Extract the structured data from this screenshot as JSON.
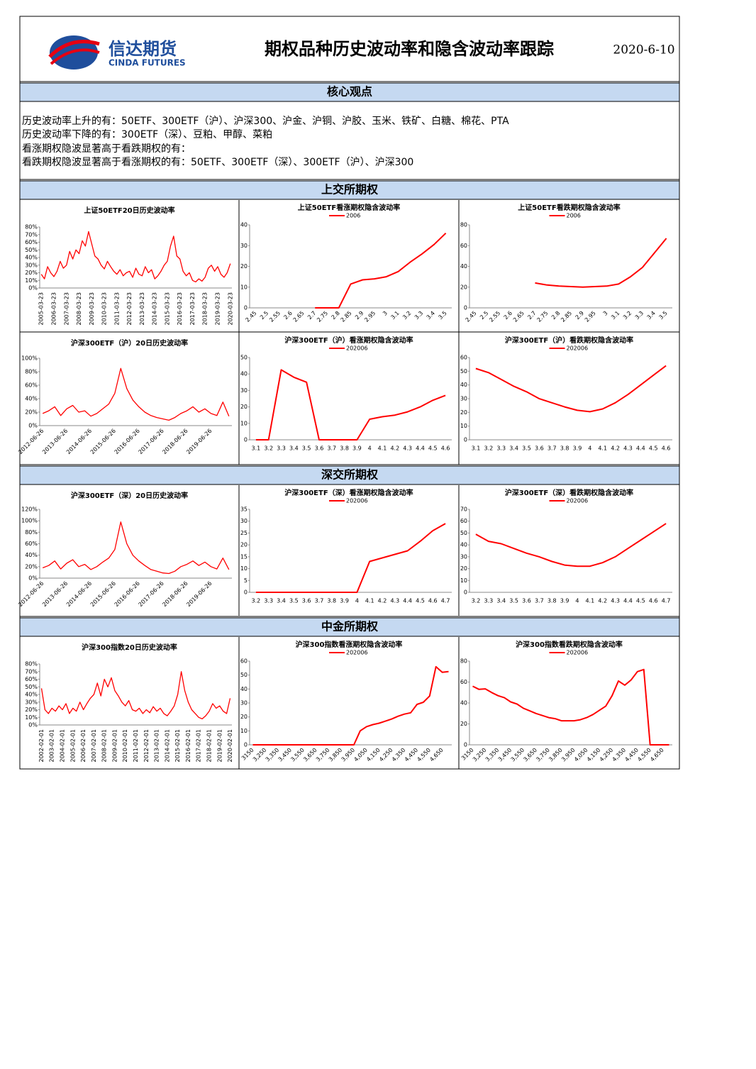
{
  "header": {
    "logo_cn": "信达期货",
    "logo_en": "CINDA FUTURES",
    "title": "期权品种历史波动率和隐含波动率跟踪",
    "date": "2020-6-10"
  },
  "sections": [
    {
      "title": "核心观点",
      "lines": [
        "历史波动率上升的有：50ETF、300ETF（沪）、沪深300、沪金、沪铜、沪胶、玉米、铁矿、白糖、棉花、PTA",
        "历史波动率下降的有：300ETF（深）、豆粕、甲醇、菜粕",
        "看涨期权隐波显著高于看跌期权的有：",
        "看跌期权隐波显著高于看涨期权的有：50ETF、300ETF（深）、300ETF（沪）、沪深300"
      ]
    },
    {
      "title": "上交所期权"
    },
    {
      "title": "深交所期权"
    },
    {
      "title": "中金所期权"
    }
  ],
  "chart_data": [
    {
      "type": "line",
      "title": "上证50ETF20日历史波动率",
      "color": "#ff0000",
      "categories": [
        "2005-03-23",
        null,
        null,
        null,
        "2006-03-23",
        null,
        null,
        null,
        "2007-03-23",
        null,
        null,
        null,
        "2008-03-23",
        null,
        null,
        null,
        "2009-03-23",
        null,
        null,
        null,
        "2010-03-23",
        null,
        null,
        null,
        "2011-03-23",
        null,
        null,
        null,
        "2012-03-23",
        null,
        null,
        null,
        "2013-03-23",
        null,
        null,
        null,
        "2014-03-23",
        null,
        null,
        null,
        "2015-03-23",
        null,
        null,
        null,
        "2016-03-23",
        null,
        null,
        null,
        "2017-03-23",
        null,
        null,
        null,
        "2018-03-23",
        null,
        null,
        null,
        "2019-03-23",
        null,
        null,
        null,
        "2020-03-23"
      ],
      "values": [
        18,
        12,
        28,
        20,
        15,
        22,
        35,
        26,
        30,
        48,
        38,
        50,
        45,
        62,
        55,
        74,
        58,
        42,
        38,
        30,
        25,
        35,
        28,
        22,
        18,
        24,
        16,
        20,
        22,
        14,
        26,
        18,
        16,
        28,
        20,
        24,
        12,
        16,
        22,
        30,
        35,
        55,
        68,
        42,
        38,
        22,
        16,
        20,
        10,
        8,
        12,
        9,
        14,
        26,
        30,
        22,
        28,
        18,
        14,
        20,
        32
      ],
      "ylim": [
        0,
        80
      ],
      "yticks": [
        {
          "value": 0,
          "label": "0%"
        },
        {
          "value": 10,
          "label": "10%"
        },
        {
          "value": 20,
          "label": "20%"
        },
        {
          "value": 30,
          "label": "30%"
        },
        {
          "value": 40,
          "label": "40%"
        },
        {
          "value": 50,
          "label": "50%"
        },
        {
          "value": 60,
          "label": "60%"
        },
        {
          "value": 70,
          "label": "70%"
        },
        {
          "value": 80,
          "label": "80%"
        }
      ]
    },
    {
      "type": "line",
      "title": "上证50ETF看涨期权隐含波动率",
      "categories": [
        "2.45",
        "2.5",
        "2.55",
        "2.6",
        "2.65",
        "2.7",
        "2.75",
        "2.8",
        "2.85",
        "2.9",
        "2.95",
        "3",
        "3.1",
        "3.2",
        "3.3",
        "3.4",
        "3.5"
      ],
      "series": [
        {
          "name": "2006",
          "color": "#ff0000",
          "values": [
            null,
            null,
            null,
            null,
            null,
            0,
            0,
            0,
            11.5,
            13.5,
            14,
            15,
            17.5,
            22,
            26,
            30.5,
            36
          ]
        }
      ],
      "ylim": [
        0,
        40
      ],
      "yticks": [
        0,
        10,
        20,
        30,
        40
      ]
    },
    {
      "type": "line",
      "title": "上证50ETF看跌期权隐含波动率",
      "categories": [
        "2.45",
        "2.5",
        "2.55",
        "2.6",
        "2.65",
        "2.7",
        "2.75",
        "2.8",
        "2.85",
        "2.9",
        "2.95",
        "3",
        "3.1",
        "3.2",
        "3.3",
        "3.4",
        "3.5"
      ],
      "series": [
        {
          "name": "2006",
          "color": "#ff0000",
          "values": [
            null,
            null,
            null,
            null,
            null,
            24,
            22,
            21,
            20.5,
            20,
            20.5,
            21,
            23,
            30,
            39,
            53,
            67
          ]
        }
      ],
      "ylim": [
        0,
        80
      ],
      "yticks": [
        0,
        20,
        40,
        60,
        80
      ]
    },
    {
      "type": "line",
      "title": "沪深300ETF（沪）20日历史波动率",
      "color": "#ff0000",
      "categories": [
        "2012-06-26",
        null,
        null,
        null,
        "2013-06-26",
        null,
        null,
        null,
        "2014-06-26",
        null,
        null,
        null,
        "2015-06-26",
        null,
        null,
        null,
        "2016-06-26",
        null,
        null,
        null,
        "2017-06-26",
        null,
        null,
        null,
        "2018-06-26",
        null,
        null,
        null,
        "2019-06-26",
        null,
        null,
        null
      ],
      "values": [
        18,
        22,
        28,
        15,
        25,
        30,
        20,
        22,
        14,
        18,
        25,
        32,
        48,
        85,
        55,
        38,
        28,
        20,
        15,
        12,
        10,
        8,
        12,
        18,
        22,
        28,
        20,
        25,
        18,
        15,
        35,
        14
      ],
      "ylim": [
        0,
        100
      ],
      "yticks": [
        {
          "value": 0,
          "label": "0%"
        },
        {
          "value": 20,
          "label": "20%"
        },
        {
          "value": 40,
          "label": "40%"
        },
        {
          "value": 60,
          "label": "60%"
        },
        {
          "value": 80,
          "label": "80%"
        },
        {
          "value": 100,
          "label": "100%"
        }
      ]
    },
    {
      "type": "line",
      "title": "沪深300ETF（沪）看涨期权隐含波动率",
      "categories": [
        "3.1",
        "3.2",
        "3.3",
        "3.4",
        "3.5",
        "3.6",
        "3.7",
        "3.8",
        "3.9",
        "4",
        "4.1",
        "4.2",
        "4.3",
        "4.4",
        "4.5",
        "4.6"
      ],
      "series": [
        {
          "name": "202006",
          "color": "#ff0000",
          "values": [
            0,
            0,
            42.5,
            38,
            35,
            0,
            0,
            0,
            0,
            12.5,
            14,
            15,
            17,
            20,
            24,
            27
          ]
        }
      ],
      "ylim": [
        0,
        50
      ],
      "yticks": [
        0,
        10,
        20,
        30,
        40,
        50
      ]
    },
    {
      "type": "line",
      "title": "沪深300ETF（沪）看跌期权隐含波动率",
      "categories": [
        "3.1",
        "3.2",
        "3.3",
        "3.4",
        "3.5",
        "3.6",
        "3.7",
        "3.8",
        "3.9",
        "4",
        "4.1",
        "4.2",
        "4.3",
        "4.4",
        "4.5",
        "4.6"
      ],
      "series": [
        {
          "name": "202006",
          "color": "#ff0000",
          "values": [
            52,
            49,
            44,
            39,
            35,
            30,
            27,
            24,
            21.5,
            20.5,
            22.5,
            27,
            33,
            40,
            47,
            54
          ]
        }
      ],
      "ylim": [
        0,
        60
      ],
      "yticks": [
        0,
        10,
        20,
        30,
        40,
        50,
        60
      ]
    },
    {
      "type": "line",
      "title": "沪深300ETF（深）20日历史波动率",
      "color": "#ff0000",
      "categories": [
        "2012-06-26",
        null,
        null,
        null,
        "2013-06-26",
        null,
        null,
        null,
        "2014-06-26",
        null,
        null,
        null,
        "2015-06-26",
        null,
        null,
        null,
        "2016-06-26",
        null,
        null,
        null,
        "2017-06-26",
        null,
        null,
        null,
        "2018-06-26",
        null,
        null,
        null,
        "2019-06-26",
        null,
        null,
        null
      ],
      "values": [
        18,
        22,
        30,
        16,
        26,
        32,
        20,
        24,
        15,
        20,
        28,
        35,
        50,
        98,
        60,
        40,
        30,
        22,
        15,
        12,
        9,
        8,
        12,
        20,
        24,
        30,
        22,
        28,
        20,
        16,
        35,
        15
      ],
      "ylim": [
        0,
        120
      ],
      "yticks": [
        {
          "value": 0,
          "label": "0%"
        },
        {
          "value": 20,
          "label": "20%"
        },
        {
          "value": 40,
          "label": "40%"
        },
        {
          "value": 60,
          "label": "60%"
        },
        {
          "value": 80,
          "label": "80%"
        },
        {
          "value": 100,
          "label": "100%"
        },
        {
          "value": 120,
          "label": "120%"
        }
      ]
    },
    {
      "type": "line",
      "title": "沪深300ETF（深）看涨期权隐含波动率",
      "categories": [
        "3.2",
        "3.3",
        "3.4",
        "3.5",
        "3.6",
        "3.7",
        "3.8",
        "3.9",
        "4",
        "4.1",
        "4.2",
        "4.3",
        "4.4",
        "4.5",
        "4.6",
        "4.7"
      ],
      "series": [
        {
          "name": "202006",
          "color": "#ff0000",
          "values": [
            0,
            0,
            0,
            0,
            0,
            0,
            0,
            0,
            0,
            13,
            14.5,
            16,
            17.5,
            21.5,
            26,
            29
          ]
        }
      ],
      "ylim": [
        0,
        35
      ],
      "yticks": [
        0,
        5,
        10,
        15,
        20,
        25,
        30,
        35
      ]
    },
    {
      "type": "line",
      "title": "沪深300ETF（深）看跌期权隐含波动率",
      "categories": [
        "3.2",
        "3.3",
        "3.4",
        "3.5",
        "3.6",
        "3.7",
        "3.8",
        "3.9",
        "4",
        "4.1",
        "4.2",
        "4.3",
        "4.4",
        "4.5",
        "4.6",
        "4.7"
      ],
      "series": [
        {
          "name": "202006",
          "color": "#ff0000",
          "values": [
            49,
            43,
            41,
            37,
            33,
            30,
            26,
            23,
            22,
            22,
            25,
            30,
            37,
            44,
            51,
            58
          ]
        }
      ],
      "ylim": [
        0,
        70
      ],
      "yticks": [
        0,
        10,
        20,
        30,
        40,
        50,
        60,
        70
      ]
    },
    {
      "type": "line",
      "title": "沪深300指数20日历史波动率",
      "color": "#ff0000",
      "categories": [
        "2002-02-01",
        null,
        null,
        "2003-02-01",
        null,
        null,
        "2004-02-01",
        null,
        null,
        "2005-02-01",
        null,
        null,
        "2006-02-01",
        null,
        null,
        "2007-02-01",
        null,
        null,
        "2008-02-01",
        null,
        null,
        "2009-02-01",
        null,
        null,
        "2010-02-01",
        null,
        null,
        "2011-02-01",
        null,
        null,
        "2012-02-01",
        null,
        null,
        "2013-02-01",
        null,
        null,
        "2014-02-01",
        null,
        null,
        "2015-02-01",
        null,
        null,
        "2016-02-01",
        null,
        null,
        "2017-02-01",
        null,
        null,
        "2018-02-01",
        null,
        null,
        "2019-02-01",
        null,
        null,
        "2020-02-01"
      ],
      "values": [
        48,
        20,
        15,
        22,
        18,
        25,
        20,
        28,
        15,
        22,
        18,
        30,
        20,
        28,
        35,
        40,
        55,
        38,
        60,
        50,
        62,
        45,
        38,
        30,
        25,
        32,
        20,
        18,
        22,
        15,
        20,
        16,
        24,
        18,
        22,
        15,
        12,
        18,
        25,
        40,
        70,
        45,
        30,
        20,
        15,
        10,
        8,
        12,
        18,
        28,
        22,
        25,
        18,
        15,
        35
      ],
      "ylim": [
        0,
        80
      ],
      "yticks": [
        {
          "value": 0,
          "label": "0%"
        },
        {
          "value": 10,
          "label": "10%"
        },
        {
          "value": 20,
          "label": "20%"
        },
        {
          "value": 30,
          "label": "30%"
        },
        {
          "value": 40,
          "label": "40%"
        },
        {
          "value": 50,
          "label": "50%"
        },
        {
          "value": 60,
          "label": "60%"
        },
        {
          "value": 70,
          "label": "70%"
        },
        {
          "value": 80,
          "label": "80%"
        }
      ]
    },
    {
      "type": "line",
      "title": "沪深300指数看涨期权隐含波动率",
      "categories": [
        "3150",
        null,
        "3,250",
        null,
        "3,350",
        null,
        "3,450",
        null,
        "3,550",
        null,
        "3,650",
        null,
        "3,750",
        null,
        "3,850",
        null,
        "3,950",
        null,
        "4,050",
        null,
        "4,150",
        null,
        "4,250",
        null,
        "4,350",
        null,
        "4,450",
        null,
        "4,550",
        null,
        "4,650",
        null
      ],
      "series": [
        {
          "name": "202006",
          "color": "#ff0000",
          "values": [
            0,
            0,
            0,
            0,
            0,
            0,
            0,
            0,
            0,
            0,
            0,
            0,
            0,
            0,
            0,
            0,
            0,
            10,
            13,
            14.5,
            15.5,
            17,
            18.5,
            20.5,
            22,
            23,
            29,
            30.5,
            35,
            56,
            52,
            52.5
          ]
        }
      ],
      "ylim": [
        0,
        60
      ],
      "yticks": [
        0,
        10,
        20,
        30,
        40,
        50,
        60
      ]
    },
    {
      "type": "line",
      "title": "沪深300指数看跌期权隐含波动率",
      "categories": [
        "3150",
        null,
        "3,250",
        null,
        "3,350",
        null,
        "3,450",
        null,
        "3,550",
        null,
        "3,650",
        null,
        "3,750",
        null,
        "3,850",
        null,
        "3,950",
        null,
        "4,050",
        null,
        "4,150",
        null,
        "4,250",
        null,
        "4,350",
        null,
        "4,450",
        null,
        "4,550",
        null,
        "4,650",
        null
      ],
      "series": [
        {
          "name": "202006",
          "color": "#ff0000",
          "values": [
            56,
            53,
            53.5,
            50,
            47,
            45,
            41,
            39,
            35,
            32.5,
            30,
            28,
            26,
            25,
            23,
            23,
            23,
            24,
            26,
            29,
            33,
            37,
            47,
            61,
            57,
            62,
            70,
            72,
            0,
            0,
            0,
            0
          ]
        }
      ],
      "ylim": [
        0,
        80
      ],
      "yticks": [
        0,
        20,
        40,
        60,
        80
      ]
    }
  ]
}
